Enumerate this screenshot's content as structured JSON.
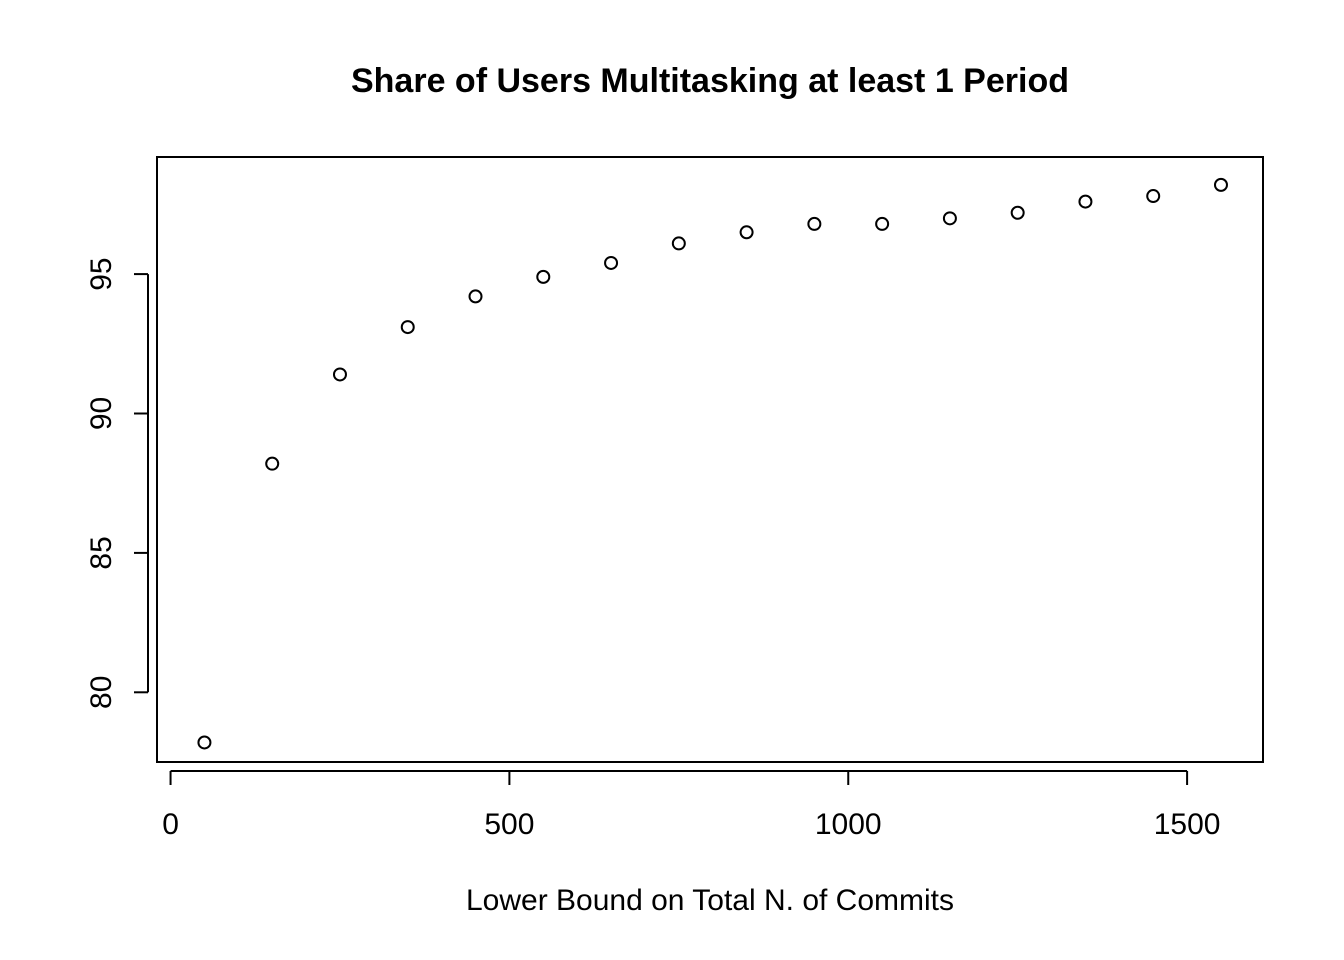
{
  "chart_data": {
    "type": "scatter",
    "title": "Share of Users Multitasking at least 1 Period",
    "xlabel": "Lower Bound on Total N. of Commits",
    "ylabel": "",
    "xlim": [
      -20,
      1612
    ],
    "ylim": [
      77.5,
      99.2
    ],
    "x_ticks": [
      0,
      500,
      1000,
      1500
    ],
    "x_tick_labels": [
      "0",
      "500",
      "1000",
      "1500"
    ],
    "y_ticks": [
      80,
      85,
      90,
      95
    ],
    "y_tick_labels": [
      "80",
      "85",
      "90",
      "95"
    ],
    "grid": false,
    "legend": "none",
    "point_color": "#000000",
    "marker": "open-circle",
    "series": [
      {
        "x": [
          50,
          150,
          250,
          350,
          450,
          550,
          650,
          750,
          850,
          950,
          1050,
          1150,
          1250,
          1350,
          1450,
          1550
        ],
        "y": [
          78.2,
          88.2,
          91.4,
          93.1,
          94.2,
          94.9,
          95.4,
          96.1,
          96.5,
          96.8,
          96.8,
          97.0,
          97.2,
          97.6,
          97.8,
          98.2
        ]
      }
    ]
  }
}
